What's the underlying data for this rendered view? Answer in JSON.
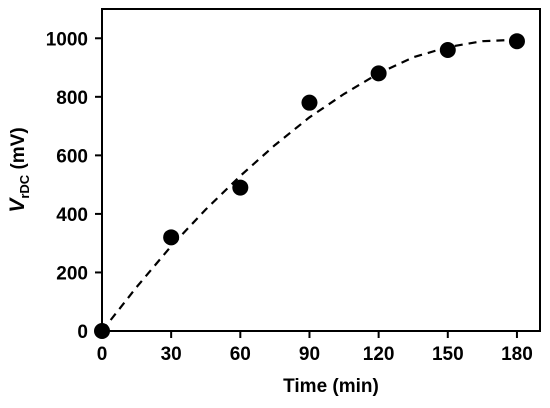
{
  "chart_data": {
    "type": "scatter",
    "xlabel": "Time (min)",
    "ylabel": {
      "main": "V",
      "subscript": "rDC",
      "unit": " (mV)"
    },
    "xlim": [
      0,
      190
    ],
    "ylim": [
      0,
      1100
    ],
    "x_ticks": [
      0,
      30,
      60,
      90,
      120,
      150,
      180
    ],
    "y_ticks": [
      0,
      200,
      400,
      600,
      800,
      1000
    ],
    "grid": false,
    "legend": "none",
    "series": [
      {
        "style": "markers",
        "color": "#000000",
        "x": [
          0,
          30,
          60,
          90,
          120,
          150,
          180
        ],
        "y": [
          0,
          320,
          490,
          780,
          880,
          960,
          990
        ]
      },
      {
        "style": "dashed-fit",
        "color": "#000000",
        "x": [
          0,
          15,
          30,
          45,
          60,
          75,
          90,
          105,
          120,
          135,
          150,
          165,
          180
        ],
        "y": [
          0,
          150,
          290,
          415,
          530,
          635,
          730,
          810,
          880,
          935,
          970,
          990,
          995
        ]
      }
    ]
  }
}
